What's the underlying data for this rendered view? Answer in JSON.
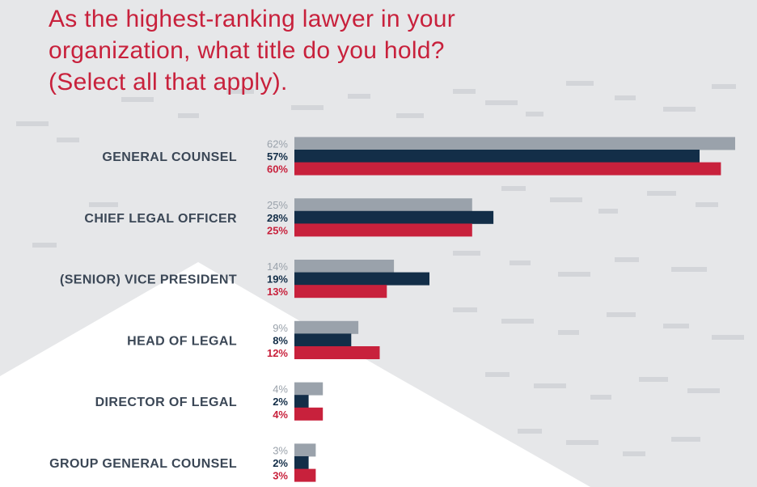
{
  "title_lines": [
    "As the highest-ranking lawyer in your",
    "organization, what title do you hold?",
    "(Select all that apply)."
  ],
  "colors": {
    "series_gray": "#9aa2ab",
    "series_navy": "#132e48",
    "series_red": "#c8213c",
    "category_label": "#3b4756"
  },
  "chart_data": {
    "type": "bar",
    "orientation": "horizontal",
    "title": "As the highest-ranking lawyer in your organization, what title do you hold? (Select all that apply).",
    "categories": [
      "GENERAL COUNSEL",
      "CHIEF LEGAL OFFICER",
      "(SENIOR) VICE PRESIDENT",
      "HEAD OF LEGAL",
      "DIRECTOR OF LEGAL",
      "GROUP GENERAL COUNSEL"
    ],
    "series": [
      {
        "values": [
          62,
          25,
          14,
          9,
          4,
          3
        ],
        "labels": [
          "62%",
          "25%",
          "14%",
          "9%",
          "4%",
          "3%"
        ],
        "color": "#9aa2ab"
      },
      {
        "values": [
          57,
          28,
          19,
          8,
          2,
          2
        ],
        "labels": [
          "57%",
          "28%",
          "19%",
          "8%",
          "2%",
          "2%"
        ],
        "color": "#132e48"
      },
      {
        "values": [
          60,
          25,
          13,
          12,
          4,
          3
        ],
        "labels": [
          "60%",
          "25%",
          "13%",
          "12%",
          "4%",
          "3%"
        ],
        "color": "#c8213c"
      }
    ],
    "unit": "%",
    "xlim": [
      0,
      62
    ],
    "grid": false,
    "legend": "none"
  }
}
